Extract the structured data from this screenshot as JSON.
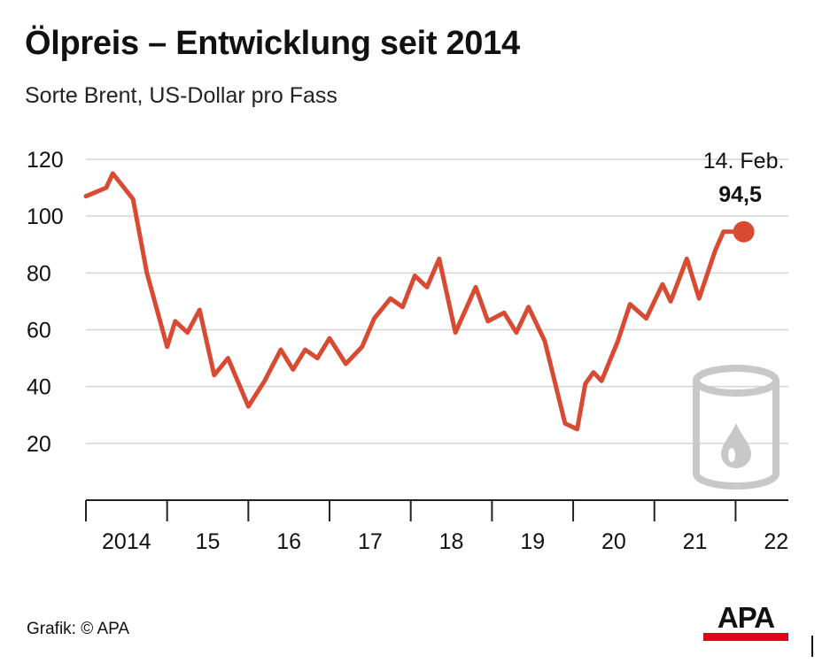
{
  "chart_data": {
    "type": "line",
    "title": "Ölpreis – Entwicklung seit 2014",
    "subtitle": "Sorte Brent, US-Dollar pro Fass",
    "xlabel": "",
    "ylabel": "",
    "ylim": [
      0,
      120
    ],
    "yticks": [
      20,
      40,
      60,
      80,
      100,
      120
    ],
    "xlim": [
      2014.0,
      2022.65
    ],
    "x_ticks": [
      {
        "label": "2014",
        "value": 2014.5
      },
      {
        "label": "15",
        "value": 2015.5
      },
      {
        "label": "16",
        "value": 2016.5
      },
      {
        "label": "17",
        "value": 2017.5
      },
      {
        "label": "18",
        "value": 2018.5
      },
      {
        "label": "19",
        "value": 2019.5
      },
      {
        "label": "20",
        "value": 2020.5
      },
      {
        "label": "21",
        "value": 2021.5
      },
      {
        "label": "22",
        "value": 2022.5
      }
    ],
    "year_boundaries": [
      2014,
      2015,
      2016,
      2017,
      2018,
      2019,
      2020,
      2021,
      2022
    ],
    "grid": true,
    "series": [
      {
        "name": "Brent",
        "color": "#d94a32",
        "x": [
          2014.0,
          2014.25,
          2014.33,
          2014.58,
          2014.75,
          2015.0,
          2015.1,
          2015.25,
          2015.4,
          2015.58,
          2015.75,
          2016.0,
          2016.2,
          2016.4,
          2016.55,
          2016.7,
          2016.85,
          2017.0,
          2017.2,
          2017.4,
          2017.55,
          2017.75,
          2017.9,
          2018.05,
          2018.2,
          2018.35,
          2018.55,
          2018.8,
          2018.95,
          2019.15,
          2019.3,
          2019.45,
          2019.65,
          2019.9,
          2020.05,
          2020.15,
          2020.25,
          2020.35,
          2020.55,
          2020.7,
          2020.9,
          2021.0,
          2021.1,
          2021.2,
          2021.4,
          2021.55,
          2021.75,
          2021.85,
          2022.0,
          2022.1
        ],
        "y": [
          107,
          110,
          115,
          106,
          80,
          54,
          63,
          59,
          67,
          44,
          50,
          33,
          42,
          53,
          46,
          53,
          50,
          57,
          48,
          54,
          64,
          71,
          68,
          79,
          75,
          85,
          59,
          75,
          63,
          66,
          59,
          68,
          56,
          27,
          25,
          41,
          45,
          42,
          56,
          69,
          64,
          70,
          76,
          70,
          85,
          71,
          88,
          94.5,
          94.5,
          94.5
        ]
      }
    ],
    "annotations": [
      {
        "date": "14. Feb.",
        "value_label": "94,5",
        "x": 2022.1,
        "y": 94.5
      }
    ],
    "icon": "oil-barrel-icon"
  },
  "footer": {
    "source": "Grafik: © APA",
    "logo_text": "APA",
    "logo_color": "#e2001a"
  }
}
